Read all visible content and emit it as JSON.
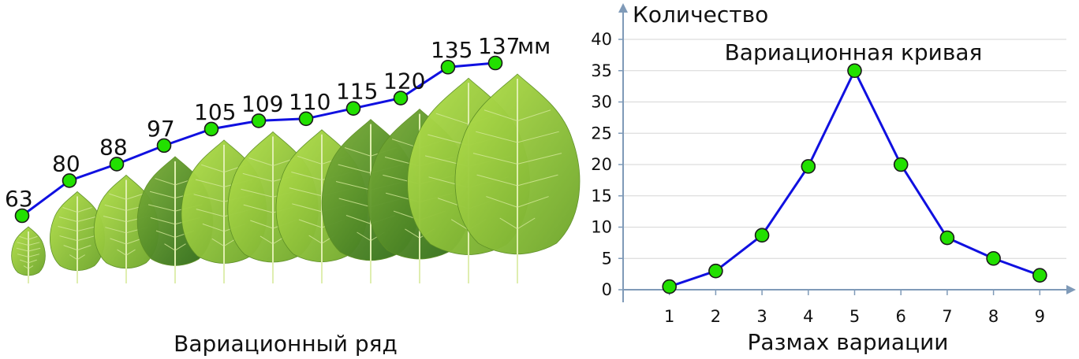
{
  "chart_data": [
    {
      "type": "line",
      "title": "",
      "xlabel": "Вариационный ряд",
      "ylabel": "",
      "unit_label": "мм",
      "series": [
        {
          "name": "",
          "values": [
            63,
            80,
            88,
            97,
            105,
            109,
            110,
            115,
            120,
            135,
            137
          ]
        }
      ],
      "colors": {
        "line": "#1010e0",
        "marker": "#22e000",
        "leaf_light": "#a6d83c",
        "leaf_dark": "#3e7f20"
      },
      "markers": "circle",
      "icon": "leaf-icon"
    },
    {
      "type": "line",
      "title": "Вариационная кривая",
      "xlabel": "Размах вариации",
      "ylabel": "Количество",
      "x": [
        1,
        2,
        3,
        4,
        5,
        6,
        7,
        8,
        9
      ],
      "series": [
        {
          "name": "",
          "values": [
            0.5,
            3,
            8.7,
            19.7,
            35,
            20,
            8.3,
            5,
            2.3
          ]
        }
      ],
      "xlim": [
        0,
        9.5
      ],
      "ylim": [
        0,
        40
      ],
      "xticks": [
        "1",
        "2",
        "3",
        "4",
        "5",
        "6",
        "7",
        "8",
        "9"
      ],
      "yticks": [
        "0",
        "5",
        "10",
        "15",
        "20",
        "25",
        "30",
        "35",
        "40"
      ],
      "grid": true,
      "colors": {
        "line": "#1010e0",
        "marker": "#22e000",
        "grid": "#d6d6d6",
        "axis": "#7f9ab8"
      },
      "markers": "circle"
    }
  ]
}
